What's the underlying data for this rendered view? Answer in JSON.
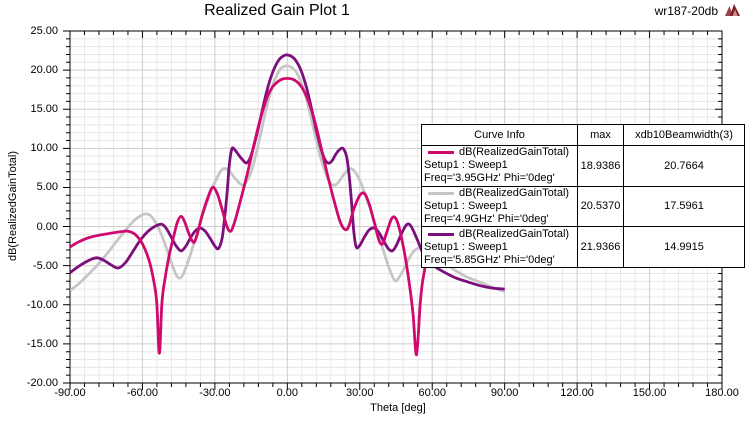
{
  "header": {
    "title": "Realized Gain Plot 1",
    "annotation": "wr187-20db",
    "logo_icon": "ansoft-triangle-logo"
  },
  "colors": {
    "background": "#ffffff",
    "plot_border": "#000000",
    "grid_minor": "#e8e8e8",
    "grid_major": "#cdcdcd",
    "text": "#000000",
    "logo_dark": "#7e2020",
    "logo_mid": "#9c4444",
    "logo_light": "#c98f8f"
  },
  "legend": {
    "headers": [
      "Curve Info",
      "max",
      "xdb10Beamwidth(3)"
    ]
  },
  "chart_data": {
    "type": "line",
    "title": "Realized Gain Plot 1",
    "xlabel": "Theta [deg]",
    "ylabel": "dB(RealizedGainTotal)",
    "xlim": [
      -90,
      180
    ],
    "ylim": [
      -20,
      25
    ],
    "x_major_step": 30,
    "x_minor_step": 6,
    "y_major_step": 5,
    "y_minor_step": 1,
    "grid": true,
    "legend_position": "overlay-right",
    "x_tick_labels": [
      "-90.00",
      "-60.00",
      "-30.00",
      "0.00",
      "30.00",
      "60.00",
      "90.00",
      "120.00",
      "150.00",
      "180.00"
    ],
    "y_tick_labels": [
      "25.00",
      "20.00",
      "15.00",
      "10.00",
      "5.00",
      "0.00",
      "-5.00",
      "-10.00",
      "-15.00",
      "-20.00"
    ],
    "series": [
      {
        "name": "dB(RealizedGainTotal)",
        "setup": "Setup1 : Sweep1",
        "variation": "Freq='3.95GHz' Phi='0deg'",
        "max": "18.9386",
        "xdb10Beamwidth3": "20.7664",
        "color": "#cf0a6e",
        "points": [
          [
            -90,
            -2.6
          ],
          [
            -86,
            -1.9
          ],
          [
            -82,
            -1.4
          ],
          [
            -78,
            -1.1
          ],
          [
            -74,
            -0.9
          ],
          [
            -70,
            -0.7
          ],
          [
            -66,
            -0.6
          ],
          [
            -63,
            -1.0
          ],
          [
            -60,
            -2.2
          ],
          [
            -57,
            -4.6
          ],
          [
            -55,
            -7.5
          ],
          [
            -54,
            -10.0
          ],
          [
            -53,
            -16.2
          ],
          [
            -52,
            -10.0
          ],
          [
            -51,
            -7.3
          ],
          [
            -49,
            -3.8
          ],
          [
            -47,
            -1.2
          ],
          [
            -45.5,
            0.6
          ],
          [
            -44,
            1.3
          ],
          [
            -42.5,
            0.6
          ],
          [
            -41,
            -0.7
          ],
          [
            -39,
            -2.0
          ],
          [
            -37.5,
            -1.2
          ],
          [
            -35.5,
            1.2
          ],
          [
            -33,
            3.6
          ],
          [
            -31,
            5.0
          ],
          [
            -29,
            4.2
          ],
          [
            -27,
            2.2
          ],
          [
            -25,
            0.0
          ],
          [
            -23.5,
            -0.6
          ],
          [
            -22,
            0.4
          ],
          [
            -20,
            2.6
          ],
          [
            -18,
            5.0
          ],
          [
            -16,
            7.5
          ],
          [
            -14,
            10.2
          ],
          [
            -12,
            12.8
          ],
          [
            -10,
            15.0
          ],
          [
            -8,
            16.8
          ],
          [
            -6,
            17.9
          ],
          [
            -4,
            18.5
          ],
          [
            -2,
            18.85
          ],
          [
            0,
            18.94
          ],
          [
            2,
            18.85
          ],
          [
            4,
            18.5
          ],
          [
            6,
            17.8
          ],
          [
            8,
            16.6
          ],
          [
            10,
            14.9
          ],
          [
            12,
            12.7
          ],
          [
            14,
            10.1
          ],
          [
            16,
            7.4
          ],
          [
            18,
            4.9
          ],
          [
            20,
            2.6
          ],
          [
            22,
            0.5
          ],
          [
            24,
            -0.4
          ],
          [
            25.5,
            0.1
          ],
          [
            27.5,
            2.2
          ],
          [
            30,
            4.0
          ],
          [
            32,
            4.2
          ],
          [
            34,
            2.8
          ],
          [
            36,
            0.5
          ],
          [
            38,
            -1.8
          ],
          [
            39.5,
            -2.2
          ],
          [
            41,
            -0.9
          ],
          [
            43,
            0.9
          ],
          [
            44.5,
            1.2
          ],
          [
            46,
            0.2
          ],
          [
            48,
            -2.5
          ],
          [
            50,
            -6.2
          ],
          [
            52,
            -11.0
          ],
          [
            53.5,
            -16.4
          ],
          [
            55,
            -10.0
          ],
          [
            56,
            -7.0
          ],
          [
            58,
            -3.9
          ],
          [
            60,
            -2.0
          ],
          [
            63,
            -0.9
          ],
          [
            66,
            -0.6
          ],
          [
            70,
            -0.8
          ],
          [
            74,
            -1.0
          ],
          [
            78,
            -1.3
          ],
          [
            82,
            -1.7
          ],
          [
            86,
            -2.2
          ],
          [
            90,
            -2.6
          ]
        ]
      },
      {
        "name": "dB(RealizedGainTotal)",
        "setup": "Setup1 : Sweep1",
        "variation": "Freq='4.9GHz' Phi='0deg'",
        "max": "20.5370",
        "xdb10Beamwidth3": "17.5961",
        "color": "#c6c6c6",
        "points": [
          [
            -90,
            -8.2
          ],
          [
            -86,
            -7.2
          ],
          [
            -82,
            -6.0
          ],
          [
            -78,
            -4.7
          ],
          [
            -74,
            -3.2
          ],
          [
            -70,
            -1.6
          ],
          [
            -66,
            -0.1
          ],
          [
            -63,
            0.9
          ],
          [
            -60,
            1.5
          ],
          [
            -58,
            1.6
          ],
          [
            -56,
            1.2
          ],
          [
            -53,
            -0.4
          ],
          [
            -50,
            -2.8
          ],
          [
            -48,
            -4.6
          ],
          [
            -46,
            -6.2
          ],
          [
            -44.5,
            -6.6
          ],
          [
            -43,
            -6.0
          ],
          [
            -41,
            -4.4
          ],
          [
            -38,
            -1.5
          ],
          [
            -35,
            1.5
          ],
          [
            -32,
            4.2
          ],
          [
            -29,
            6.3
          ],
          [
            -27,
            7.3
          ],
          [
            -25.5,
            7.4
          ],
          [
            -24,
            7.1
          ],
          [
            -22,
            6.3
          ],
          [
            -20,
            5.6
          ],
          [
            -18.5,
            5.3
          ],
          [
            -17,
            5.7
          ],
          [
            -15,
            7.0
          ],
          [
            -13,
            9.2
          ],
          [
            -11,
            11.9
          ],
          [
            -9,
            14.7
          ],
          [
            -7,
            17.1
          ],
          [
            -5,
            18.9
          ],
          [
            -3,
            20.1
          ],
          [
            -1,
            20.5
          ],
          [
            0,
            20.54
          ],
          [
            2,
            20.3
          ],
          [
            4,
            19.6
          ],
          [
            6,
            18.2
          ],
          [
            8,
            16.2
          ],
          [
            10,
            13.7
          ],
          [
            12,
            11.0
          ],
          [
            14,
            8.6
          ],
          [
            16,
            6.7
          ],
          [
            18,
            5.5
          ],
          [
            19.5,
            5.3
          ],
          [
            21,
            5.6
          ],
          [
            23,
            6.5
          ],
          [
            25,
            7.2
          ],
          [
            26.5,
            7.4
          ],
          [
            28,
            7.0
          ],
          [
            30,
            5.9
          ],
          [
            33,
            3.5
          ],
          [
            36,
            0.7
          ],
          [
            39,
            -2.3
          ],
          [
            42,
            -5.2
          ],
          [
            44.5,
            -6.9
          ],
          [
            46,
            -6.6
          ],
          [
            48,
            -5.6
          ],
          [
            50,
            -4.3
          ],
          [
            52,
            -3.3
          ],
          [
            54,
            -2.8
          ],
          [
            56,
            -2.7
          ],
          [
            58,
            -3.0
          ],
          [
            60,
            -3.5
          ],
          [
            63,
            -4.2
          ],
          [
            66,
            -4.9
          ],
          [
            70,
            -5.7
          ],
          [
            74,
            -6.4
          ],
          [
            78,
            -6.9
          ],
          [
            82,
            -7.4
          ],
          [
            86,
            -7.9
          ],
          [
            90,
            -8.3
          ]
        ]
      },
      {
        "name": "dB(RealizedGainTotal)",
        "setup": "Setup1 : Sweep1",
        "variation": "Freq='5.85GHz' Phi='0deg'",
        "max": "21.9366",
        "xdb10Beamwidth3": "14.9915",
        "color": "#7b0f7b",
        "points": [
          [
            -90,
            -5.9
          ],
          [
            -86,
            -5.0
          ],
          [
            -82,
            -4.3
          ],
          [
            -79,
            -4.0
          ],
          [
            -76,
            -4.3
          ],
          [
            -73,
            -4.9
          ],
          [
            -70,
            -5.3
          ],
          [
            -67,
            -4.6
          ],
          [
            -64,
            -3.2
          ],
          [
            -61,
            -1.8
          ],
          [
            -58,
            -0.7
          ],
          [
            -55,
            0.0
          ],
          [
            -52,
            0.3
          ],
          [
            -50,
            -0.3
          ],
          [
            -48,
            -1.4
          ],
          [
            -46,
            -2.5
          ],
          [
            -44,
            -3.1
          ],
          [
            -42,
            -2.5
          ],
          [
            -40,
            -1.4
          ],
          [
            -38,
            -0.5
          ],
          [
            -36,
            -0.2
          ],
          [
            -34,
            -0.6
          ],
          [
            -32,
            -1.5
          ],
          [
            -30,
            -2.5
          ],
          [
            -28.5,
            -2.8
          ],
          [
            -27,
            -1.5
          ],
          [
            -26,
            1.0
          ],
          [
            -25,
            4.2
          ],
          [
            -24,
            8.0
          ],
          [
            -23,
            9.9
          ],
          [
            -22,
            9.9
          ],
          [
            -20.5,
            9.3
          ],
          [
            -19,
            8.7
          ],
          [
            -17.5,
            8.2
          ],
          [
            -16.5,
            8.2
          ],
          [
            -15,
            9.1
          ],
          [
            -13,
            11.3
          ],
          [
            -11,
            14.0
          ],
          [
            -9,
            16.7
          ],
          [
            -7,
            18.9
          ],
          [
            -5,
            20.5
          ],
          [
            -3,
            21.5
          ],
          [
            -1,
            21.9
          ],
          [
            0,
            21.94
          ],
          [
            2,
            21.7
          ],
          [
            4,
            21.0
          ],
          [
            6,
            19.7
          ],
          [
            8,
            17.7
          ],
          [
            10,
            15.1
          ],
          [
            12,
            12.3
          ],
          [
            14,
            9.9
          ],
          [
            15.5,
            8.6
          ],
          [
            17,
            8.1
          ],
          [
            18.5,
            8.4
          ],
          [
            20,
            9.2
          ],
          [
            21.5,
            9.8
          ],
          [
            23,
            10.0
          ],
          [
            24.5,
            9.0
          ],
          [
            25.5,
            6.8
          ],
          [
            26.5,
            3.5
          ],
          [
            27.5,
            -0.5
          ],
          [
            28.5,
            -2.6
          ],
          [
            30,
            -2.4
          ],
          [
            32,
            -1.3
          ],
          [
            34,
            -0.4
          ],
          [
            36,
            -0.2
          ],
          [
            38,
            -0.8
          ],
          [
            40,
            -1.9
          ],
          [
            42,
            -2.9
          ],
          [
            43.5,
            -3.1
          ],
          [
            45,
            -2.5
          ],
          [
            47,
            -1.1
          ],
          [
            49,
            0.1
          ],
          [
            50.5,
            0.3
          ],
          [
            52,
            -0.4
          ],
          [
            54,
            -1.8
          ],
          [
            56,
            -3.3
          ],
          [
            58,
            -4.3
          ],
          [
            60,
            -4.9
          ],
          [
            63,
            -5.5
          ],
          [
            66,
            -6.0
          ],
          [
            70,
            -6.6
          ],
          [
            74,
            -7.0
          ],
          [
            78,
            -7.4
          ],
          [
            82,
            -7.7
          ],
          [
            86,
            -7.9
          ],
          [
            90,
            -8.0
          ]
        ]
      }
    ]
  }
}
